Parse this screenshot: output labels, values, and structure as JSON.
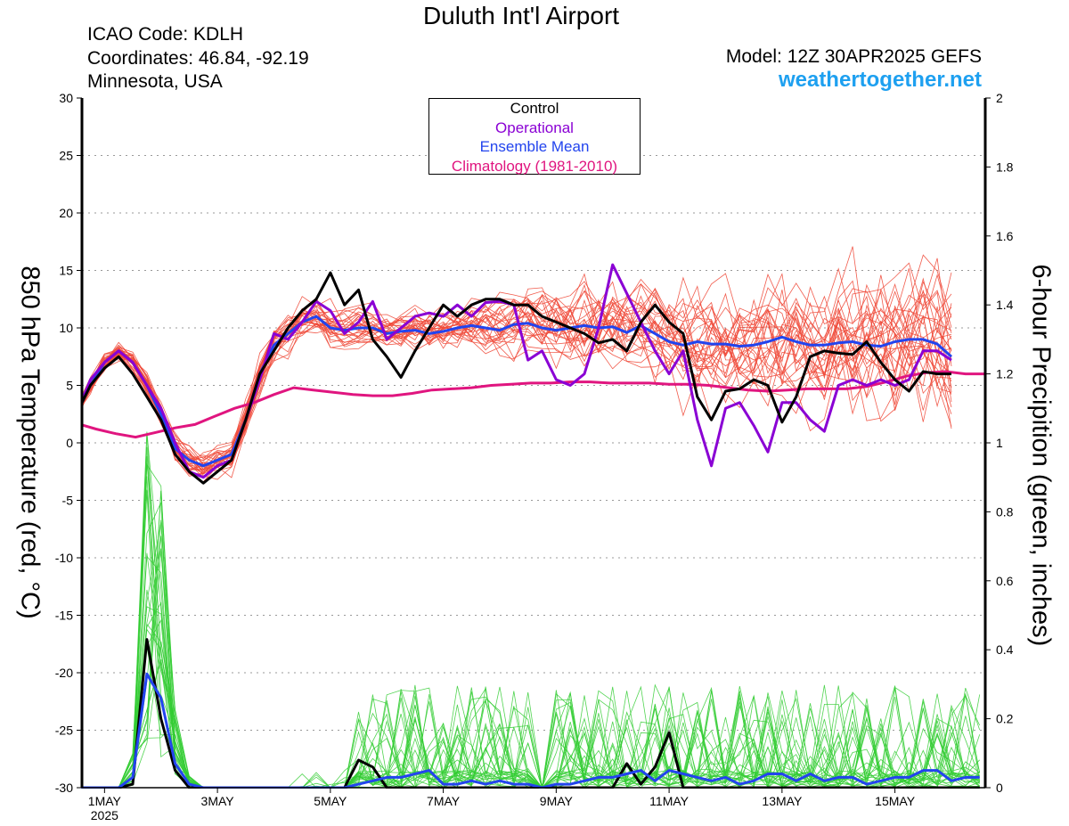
{
  "header": {
    "title": "Duluth Int'l Airport",
    "icao": "ICAO Code: KDLH",
    "coords": "Coordinates: 46.84, -92.19",
    "region": "Minnesota, USA",
    "model": "Model: 12Z 30APR2025 GEFS",
    "site": "weathertogether.net"
  },
  "chart_data": {
    "type": "line",
    "title": "Duluth Int'l Airport",
    "ylabel_left": "850 hPa Temperature (red, °C)",
    "ylabel_right": "6-hour Precipition (green, inches)",
    "ylim_left": [
      -30,
      30
    ],
    "ylim_right": [
      0,
      2
    ],
    "yticks_left": [
      "30",
      "25",
      "20",
      "15",
      "10",
      "5",
      "0",
      "-5",
      "-10",
      "-15",
      "-20",
      "-25",
      "-30"
    ],
    "yticks_right": [
      "2",
      "1.8",
      "1.6",
      "1.4",
      "1.2",
      "1",
      "0.8",
      "0.6",
      "0.4",
      "0.2",
      "0"
    ],
    "x_range_days": [
      0.6,
      16.6
    ],
    "xticks": [
      {
        "day": 1,
        "label": "1MAY",
        "sub": "2025"
      },
      {
        "day": 3,
        "label": "3MAY"
      },
      {
        "day": 5,
        "label": "5MAY"
      },
      {
        "day": 7,
        "label": "7MAY"
      },
      {
        "day": 9,
        "label": "9MAY"
      },
      {
        "day": 11,
        "label": "11MAY"
      },
      {
        "day": 13,
        "label": "13MAY"
      },
      {
        "day": 15,
        "label": "15MAY"
      }
    ],
    "legend": [
      "Control",
      "Operational",
      "Ensemble Mean",
      "Climatology (1981-2010)"
    ],
    "legend_colors": [
      "#000000",
      "#8a00d4",
      "#2244ee",
      "#e0157f"
    ],
    "colors": {
      "members_temp": "#f04a3a",
      "members_precip": "#33cc33"
    },
    "x": [
      0.5,
      0.75,
      1.0,
      1.25,
      1.5,
      1.75,
      2.0,
      2.25,
      2.5,
      2.75,
      3.0,
      3.25,
      3.5,
      3.75,
      4.0,
      4.25,
      4.5,
      4.75,
      5.0,
      5.25,
      5.5,
      5.75,
      6.0,
      6.25,
      6.5,
      6.75,
      7.0,
      7.25,
      7.5,
      7.75,
      8.0,
      8.25,
      8.5,
      8.75,
      9.0,
      9.25,
      9.5,
      9.75,
      10.0,
      10.25,
      10.5,
      10.75,
      11.0,
      11.25,
      11.5,
      11.75,
      12.0,
      12.25,
      12.5,
      12.75,
      13.0,
      13.25,
      13.5,
      13.75,
      14.0,
      14.25,
      14.5,
      14.75,
      15.0,
      15.25,
      15.5,
      15.75,
      16.0,
      16.25,
      16.5
    ],
    "series_temp": [
      {
        "name": "Control",
        "values": [
          2.5,
          5,
          6.5,
          7.5,
          6,
          4,
          2,
          -1,
          -2.5,
          -3.5,
          -2.5,
          -1.5,
          2,
          6,
          8,
          10,
          11.5,
          12.5,
          14.8,
          12,
          13.3,
          9,
          7.5,
          5.7,
          8,
          10,
          12,
          11,
          12,
          12.5,
          12.5,
          12,
          12,
          11,
          10.5,
          10,
          9.5,
          8.7,
          9,
          8,
          10.5,
          12,
          10.5,
          9.5,
          4,
          2,
          4.5,
          4.7,
          5.5,
          5,
          1.8,
          4,
          7.5,
          8,
          7.8,
          7.7,
          8.8,
          7,
          5.5,
          4.5,
          6.2,
          6,
          6
        ]
      },
      {
        "name": "Operational",
        "values": [
          2.5,
          5.5,
          7,
          8,
          7,
          5,
          3,
          0,
          -2.5,
          -3,
          -2,
          -1.5,
          2,
          5.5,
          9.5,
          9,
          10.5,
          12.3,
          11.5,
          9.5,
          10.5,
          12.3,
          9,
          10,
          11,
          11.3,
          11,
          12,
          11,
          12.2,
          12.3,
          12,
          7.2,
          8,
          5.5,
          5,
          6,
          10,
          15.5,
          13,
          10.5,
          8,
          6,
          8,
          2,
          -2,
          3,
          3.5,
          1.5,
          -0.8,
          3.5,
          3.5,
          2,
          1,
          5,
          5.5,
          5,
          5.5,
          5,
          5.5,
          8,
          8,
          7.2
        ]
      },
      {
        "name": "Ensemble Mean",
        "values": [
          2.5,
          5,
          7,
          8,
          7,
          5,
          2.5,
          -0.5,
          -1.5,
          -2,
          -1.5,
          -1,
          2,
          6,
          8.5,
          9.5,
          10.5,
          11,
          10,
          9.8,
          10,
          10,
          9.5,
          9.7,
          9.8,
          9.5,
          9.7,
          10,
          10.2,
          10,
          9.8,
          10.3,
          10.4,
          10,
          9.8,
          10,
          10.2,
          10,
          10.1,
          9.6,
          10.2,
          9.5,
          8.8,
          8.5,
          8.8,
          8.6,
          8.6,
          8.4,
          8.5,
          8.8,
          9.2,
          8.8,
          8.5,
          8.5,
          8.7,
          8.8,
          8.5,
          8.4,
          8.8,
          9,
          9,
          8.6,
          7.5
        ]
      },
      {
        "name": "Climatology (1981-2010)",
        "values": [
          1.7,
          1.2,
          0.8,
          0.5,
          0.9,
          1.3,
          1.6,
          2.3,
          3,
          3.5,
          4.2,
          4.8,
          4.6,
          4.4,
          4.2,
          4.1,
          4.1,
          4.3,
          4.6,
          4.7,
          4.8,
          5,
          5.1,
          5.2,
          5.2,
          5.3,
          5.3,
          5.2,
          5.2,
          5.2,
          5.1,
          5.1,
          5,
          4.8,
          4.6,
          4.5,
          4.6,
          4.7,
          4.7,
          4.7,
          4.9,
          5.3,
          5.8,
          6.1,
          6.2,
          6,
          6
        ]
      }
    ],
    "series_precip": [
      {
        "name": "Control",
        "values": [
          0,
          0,
          0,
          0,
          0.01,
          0.43,
          0.2,
          0.05,
          0,
          0,
          0,
          0,
          0,
          0,
          0,
          0,
          0,
          0,
          0,
          0,
          0.08,
          0.06,
          0,
          0,
          0,
          0,
          0,
          0,
          0,
          0,
          0,
          0,
          0,
          0,
          0,
          0,
          0,
          0,
          0,
          0.07,
          0.01,
          0.06,
          0.16,
          0,
          0,
          0,
          0,
          0,
          0,
          0,
          0,
          0,
          0,
          0,
          0,
          0,
          0,
          0,
          0,
          0,
          0,
          0,
          0,
          0,
          0
        ]
      },
      {
        "name": "Ensemble Mean",
        "values": [
          0,
          0,
          0,
          0,
          0.03,
          0.33,
          0.26,
          0.07,
          0.01,
          0,
          0,
          0,
          0,
          0,
          0,
          0,
          0,
          0,
          0,
          0,
          0.01,
          0.02,
          0.03,
          0.03,
          0.04,
          0.05,
          0.01,
          0.01,
          0.02,
          0.01,
          0.02,
          0.01,
          0.01,
          0,
          0.01,
          0.01,
          0.02,
          0.03,
          0.03,
          0.04,
          0.05,
          0.02,
          0.05,
          0.04,
          0.03,
          0.02,
          0.03,
          0.01,
          0.02,
          0.04,
          0.04,
          0.02,
          0.04,
          0.02,
          0.03,
          0.03,
          0.01,
          0.02,
          0.03,
          0.03,
          0.05,
          0.05,
          0.02,
          0.03,
          0.03
        ]
      }
    ]
  }
}
